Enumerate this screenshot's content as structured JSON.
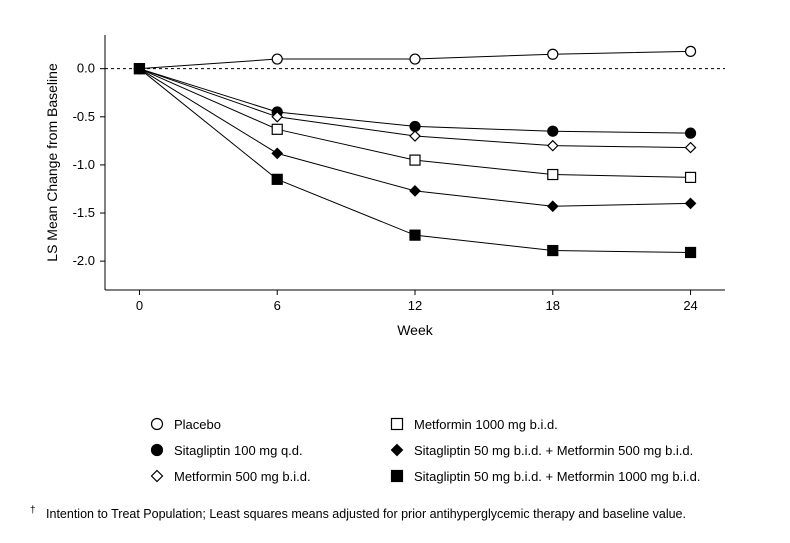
{
  "chart": {
    "type": "line",
    "xlabel": "Week",
    "ylabel": "LS Mean Change from Baseline",
    "x_values": [
      0,
      6,
      12,
      18,
      24
    ],
    "xlim": [
      -1.5,
      25.5
    ],
    "ylim": [
      -2.3,
      0.35
    ],
    "xticks": [
      0,
      6,
      12,
      18,
      24
    ],
    "yticks": [
      -2.0,
      -1.5,
      -1.0,
      -0.5,
      0.0
    ],
    "ytick_labels": [
      "-2.0",
      "-1.5",
      "-1.0",
      "-0.5",
      "0.0"
    ],
    "xtick_labels": [
      "0",
      "6",
      "12",
      "18",
      "24"
    ],
    "zero_line_dashed": true,
    "label_fontsize": 14,
    "tick_fontsize": 13,
    "background_color": "#ffffff",
    "line_color": "#000000",
    "marker_edge_color": "#000000",
    "marker_size": 7,
    "error_bar_half": 0.05,
    "series": [
      {
        "name": "Placebo",
        "marker": "circle",
        "fill": "#ffffff",
        "y": [
          0.0,
          0.1,
          0.1,
          0.15,
          0.18
        ]
      },
      {
        "name": "Sitagliptin 100 mg q.d.",
        "marker": "circle",
        "fill": "#000000",
        "y": [
          0.0,
          -0.45,
          -0.6,
          -0.65,
          -0.67
        ]
      },
      {
        "name": "Metformin 500 mg b.i.d.",
        "marker": "diamond",
        "fill": "#ffffff",
        "y": [
          0.0,
          -0.5,
          -0.7,
          -0.8,
          -0.82
        ]
      },
      {
        "name": "Metformin 1000 mg b.i.d.",
        "marker": "square",
        "fill": "#ffffff",
        "y": [
          0.0,
          -0.63,
          -0.95,
          -1.1,
          -1.13
        ]
      },
      {
        "name": "Sitagliptin 50 mg b.i.d. + Metformin 500 mg b.i.d.",
        "marker": "diamond",
        "fill": "#000000",
        "y": [
          0.0,
          -0.88,
          -1.27,
          -1.43,
          -1.4
        ]
      },
      {
        "name": "Sitagliptin 50 mg b.i.d. + Metformin 1000 mg b.i.d.",
        "marker": "square",
        "fill": "#000000",
        "y": [
          0.0,
          -1.15,
          -1.73,
          -1.89,
          -1.91
        ]
      }
    ]
  },
  "legend": {
    "col1": [
      {
        "label": "Placebo",
        "marker": "circle",
        "fill": "#ffffff"
      },
      {
        "label": "Sitagliptin 100 mg q.d.",
        "marker": "circle",
        "fill": "#000000"
      },
      {
        "label": "Metformin 500 mg b.i.d.",
        "marker": "diamond",
        "fill": "#ffffff"
      }
    ],
    "col2": [
      {
        "label": "Metformin 1000 mg b.i.d.",
        "marker": "square",
        "fill": "#ffffff"
      },
      {
        "label": "Sitagliptin 50 mg b.i.d. + Metformin 500 mg b.i.d.",
        "marker": "diamond",
        "fill": "#000000"
      },
      {
        "label": "Sitagliptin 50 mg b.i.d. + Metformin 1000 mg b.i.d.",
        "marker": "square",
        "fill": "#000000"
      }
    ]
  },
  "footnote": {
    "dagger": "†",
    "text": "Intention to Treat Population; Least squares means adjusted for prior antihyperglycemic therapy and baseline value."
  }
}
